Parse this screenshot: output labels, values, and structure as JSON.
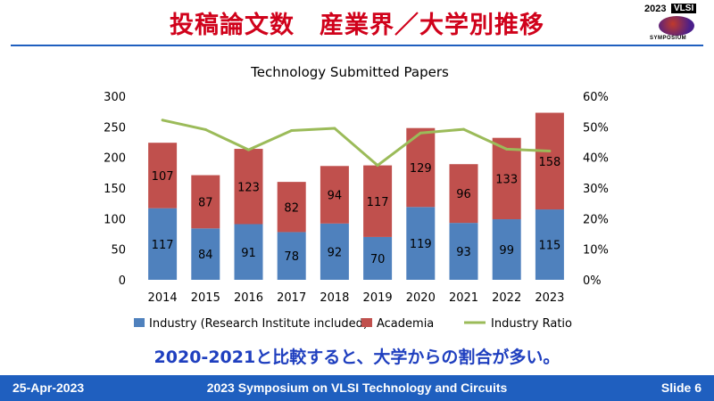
{
  "slide": {
    "title": "投稿論文数　産業界／大学別推移",
    "highlight": "2020-2021と比較すると、大学からの割合が多い。"
  },
  "logo": {
    "year": "2023",
    "text": "VLSI",
    "subtext": "SYMPOSIUM"
  },
  "footer": {
    "date": "25-Apr-2023",
    "conference": "2023 Symposium on VLSI Technology and Circuits",
    "slide_number": "Slide 6"
  },
  "chart_data": {
    "type": "bar",
    "stacked": true,
    "title": "Technology Submitted Papers",
    "categories": [
      "2014",
      "2015",
      "2016",
      "2017",
      "2018",
      "2019",
      "2020",
      "2021",
      "2022",
      "2023"
    ],
    "series": [
      {
        "name": "Industry (Research Institute included)",
        "type": "bar",
        "color": "#4f81bd",
        "values": [
          117,
          84,
          91,
          78,
          92,
          70,
          119,
          93,
          99,
          115
        ]
      },
      {
        "name": "Academia",
        "type": "bar",
        "color": "#c0504d",
        "values": [
          107,
          87,
          123,
          82,
          94,
          117,
          129,
          96,
          133,
          158
        ]
      },
      {
        "name": "Industry Ratio",
        "type": "line",
        "axis": "right",
        "color": "#9bbb59",
        "values": [
          52.2,
          49.1,
          42.5,
          48.8,
          49.5,
          37.4,
          48.0,
          49.2,
          42.7,
          42.1
        ]
      }
    ],
    "y_left": {
      "min": 0,
      "max": 300,
      "ticks": [
        "0",
        "50",
        "100",
        "150",
        "200",
        "250",
        "300"
      ]
    },
    "y_right": {
      "min": 0,
      "max": 60,
      "ticks": [
        "0%",
        "10%",
        "20%",
        "30%",
        "40%",
        "50%",
        "60%"
      ]
    },
    "grid": false,
    "legend": "bottom"
  }
}
